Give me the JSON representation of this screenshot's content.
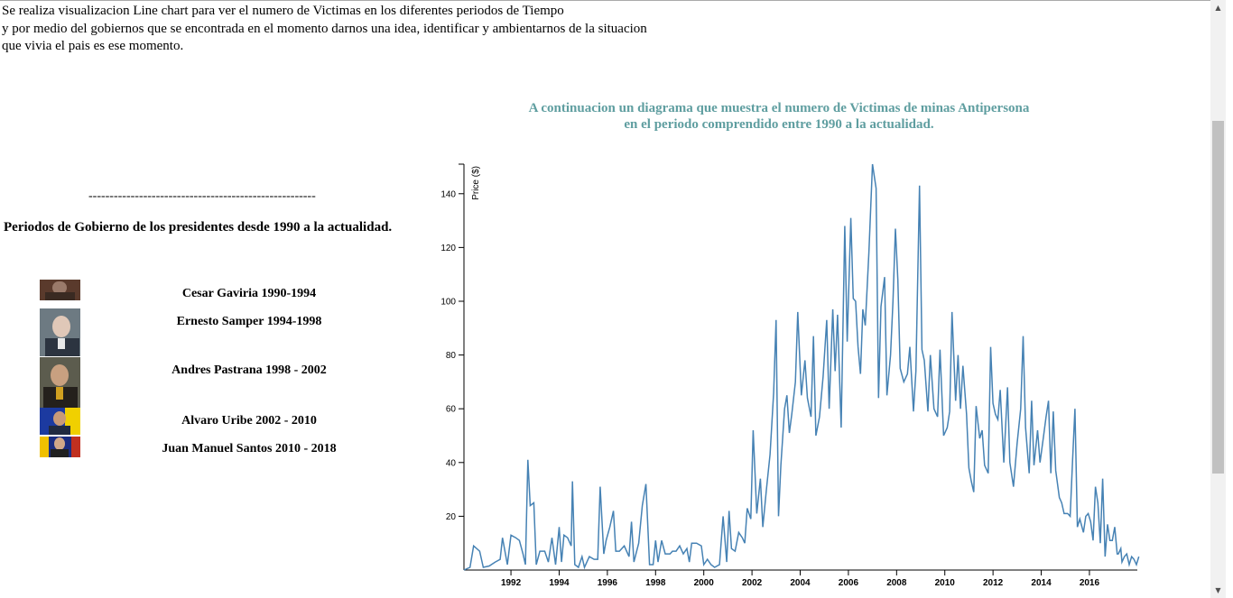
{
  "intro": {
    "lines": [
      "Se realiza visualizacion Line chart para ver el numero de Victimas en los diferentes periodos de Tiempo",
      "y por medio del gobiernos que se encontrada en el momento darnos una idea, identificar y ambientarnos de la situacion",
      "que vivia el pais es ese momento."
    ]
  },
  "left": {
    "separator": "------------------------------------------------------",
    "heading": "Periodos de Gobierno de los presidentes desde 1990 a la actualidad.",
    "presidents": [
      {
        "name": "Cesar Gaviria 1990-1994",
        "photo_colors": [
          "#5a3a2c",
          "#9a7a6a",
          "#3a2a22"
        ]
      },
      {
        "name": "Ernesto Samper 1994-1998",
        "photo_colors": [
          "#6d7a82",
          "#e0c8b8",
          "#2c3440"
        ]
      },
      {
        "name": "Andres Pastrana 1998 - 2002",
        "photo_colors": [
          "#5c5c4e",
          "#c8a080",
          "#24201c"
        ]
      },
      {
        "name": "Alvaro Uribe 2002 - 2010",
        "photo_colors": [
          "#1c3aa0",
          "#f0d000",
          "#202a40"
        ]
      },
      {
        "name": "Juan Manuel Santos 2010 - 2018",
        "photo_colors": [
          "#1a2d80",
          "#f0c000",
          "#c03020"
        ]
      }
    ]
  },
  "chart_title": {
    "line1": "A continuacion un diagrama que muestra el numero de Victimas de minas Antipersona",
    "line2": "en el periodo comprendido entre 1990 a la actualidad."
  },
  "colors": {
    "title": "#5f9ea0",
    "line": "#4682b4"
  },
  "chart_data": {
    "type": "line",
    "ylabel": "Price ($)",
    "xlabel": "",
    "xlim": [
      1990.05,
      2017.5
    ],
    "ylim": [
      0,
      151
    ],
    "x_ticks": [
      1992,
      1994,
      1996,
      1998,
      2000,
      2002,
      2004,
      2006,
      2008,
      2010,
      2012,
      2014,
      2016
    ],
    "y_ticks": [
      20,
      40,
      60,
      80,
      100,
      120,
      140
    ],
    "grid": false,
    "series": [
      {
        "values": [
          [
            1990.05,
            0
          ],
          [
            1990.3,
            1
          ],
          [
            1990.45,
            9
          ],
          [
            1990.7,
            7
          ],
          [
            1990.85,
            1
          ],
          [
            1991.1,
            1.5
          ],
          [
            1991.35,
            3
          ],
          [
            1991.55,
            4
          ],
          [
            1991.65,
            12
          ],
          [
            1991.85,
            2
          ],
          [
            1992.0,
            13
          ],
          [
            1992.2,
            12
          ],
          [
            1992.35,
            11
          ],
          [
            1992.5,
            6
          ],
          [
            1992.6,
            2
          ],
          [
            1992.7,
            41
          ],
          [
            1992.8,
            24
          ],
          [
            1992.95,
            25
          ],
          [
            1993.05,
            2
          ],
          [
            1993.2,
            7
          ],
          [
            1993.4,
            7
          ],
          [
            1993.55,
            3
          ],
          [
            1993.7,
            12
          ],
          [
            1993.85,
            2
          ],
          [
            1994.0,
            16
          ],
          [
            1994.1,
            3
          ],
          [
            1994.2,
            13
          ],
          [
            1994.35,
            12
          ],
          [
            1994.5,
            9
          ],
          [
            1994.55,
            33
          ],
          [
            1994.65,
            2
          ],
          [
            1994.8,
            1
          ],
          [
            1994.95,
            5
          ],
          [
            1995.05,
            1
          ],
          [
            1995.25,
            5
          ],
          [
            1995.45,
            4
          ],
          [
            1995.6,
            4
          ],
          [
            1995.7,
            31
          ],
          [
            1995.85,
            6
          ],
          [
            1995.95,
            11
          ],
          [
            1996.1,
            16
          ],
          [
            1996.25,
            22
          ],
          [
            1996.35,
            7
          ],
          [
            1996.5,
            7
          ],
          [
            1996.7,
            9
          ],
          [
            1996.8,
            7
          ],
          [
            1996.9,
            5
          ],
          [
            1997.0,
            18
          ],
          [
            1997.1,
            3
          ],
          [
            1997.3,
            10
          ],
          [
            1997.45,
            24
          ],
          [
            1997.6,
            32
          ],
          [
            1997.75,
            2
          ],
          [
            1997.9,
            2
          ],
          [
            1998.0,
            11
          ],
          [
            1998.1,
            3
          ],
          [
            1998.25,
            11
          ],
          [
            1998.4,
            6
          ],
          [
            1998.6,
            6
          ],
          [
            1998.7,
            7
          ],
          [
            1998.85,
            7
          ],
          [
            1999.0,
            9
          ],
          [
            1999.15,
            6
          ],
          [
            1999.3,
            8
          ],
          [
            1999.4,
            3
          ],
          [
            1999.5,
            10
          ],
          [
            1999.7,
            10
          ],
          [
            1999.9,
            9
          ],
          [
            2000.0,
            2
          ],
          [
            2000.15,
            4
          ],
          [
            2000.3,
            2
          ],
          [
            2000.45,
            1
          ],
          [
            2000.65,
            2
          ],
          [
            2000.8,
            20
          ],
          [
            2000.95,
            3
          ],
          [
            2001.05,
            22
          ],
          [
            2001.15,
            8
          ],
          [
            2001.3,
            7
          ],
          [
            2001.45,
            14
          ],
          [
            2001.6,
            12
          ],
          [
            2001.7,
            10
          ],
          [
            2001.8,
            23
          ],
          [
            2001.95,
            19
          ],
          [
            2002.05,
            52
          ],
          [
            2002.2,
            21
          ],
          [
            2002.35,
            34
          ],
          [
            2002.45,
            16
          ],
          [
            2002.6,
            30
          ],
          [
            2002.75,
            43
          ],
          [
            2002.9,
            66
          ],
          [
            2003.0,
            93
          ],
          [
            2003.1,
            20
          ],
          [
            2003.2,
            39
          ],
          [
            2003.35,
            60
          ],
          [
            2003.45,
            65
          ],
          [
            2003.55,
            51
          ],
          [
            2003.65,
            58
          ],
          [
            2003.8,
            70
          ],
          [
            2003.9,
            96
          ],
          [
            2004.05,
            65
          ],
          [
            2004.2,
            78
          ],
          [
            2004.3,
            64
          ],
          [
            2004.45,
            57
          ],
          [
            2004.55,
            87
          ],
          [
            2004.65,
            50
          ],
          [
            2004.8,
            57
          ],
          [
            2004.95,
            72
          ],
          [
            2005.1,
            93
          ],
          [
            2005.2,
            60
          ],
          [
            2005.35,
            97
          ],
          [
            2005.45,
            74
          ],
          [
            2005.55,
            95
          ],
          [
            2005.7,
            53
          ],
          [
            2005.85,
            128
          ],
          [
            2005.95,
            85
          ],
          [
            2006.1,
            131
          ],
          [
            2006.2,
            101
          ],
          [
            2006.3,
            100
          ],
          [
            2006.4,
            83
          ],
          [
            2006.5,
            73
          ],
          [
            2006.6,
            97
          ],
          [
            2006.7,
            91
          ],
          [
            2006.85,
            118
          ],
          [
            2007.0,
            151
          ],
          [
            2007.15,
            142
          ],
          [
            2007.25,
            64
          ],
          [
            2007.35,
            98
          ],
          [
            2007.5,
            109
          ],
          [
            2007.6,
            65
          ],
          [
            2007.75,
            80
          ],
          [
            2007.85,
            100
          ],
          [
            2007.95,
            127
          ],
          [
            2008.05,
            108
          ],
          [
            2008.15,
            75
          ],
          [
            2008.3,
            70
          ],
          [
            2008.45,
            73
          ],
          [
            2008.55,
            83
          ],
          [
            2008.7,
            59
          ],
          [
            2008.8,
            74
          ],
          [
            2008.95,
            143
          ],
          [
            2009.05,
            82
          ],
          [
            2009.15,
            78
          ],
          [
            2009.3,
            59
          ],
          [
            2009.4,
            80
          ],
          [
            2009.55,
            60
          ],
          [
            2009.7,
            57
          ],
          [
            2009.8,
            82
          ],
          [
            2009.95,
            50
          ],
          [
            2010.1,
            53
          ],
          [
            2010.2,
            59
          ],
          [
            2010.3,
            96
          ],
          [
            2010.45,
            63
          ],
          [
            2010.55,
            80
          ],
          [
            2010.65,
            60
          ],
          [
            2010.75,
            76
          ],
          [
            2010.9,
            58
          ],
          [
            2011.0,
            38
          ],
          [
            2011.1,
            33
          ],
          [
            2011.2,
            29
          ],
          [
            2011.3,
            61
          ],
          [
            2011.45,
            49
          ],
          [
            2011.55,
            52
          ],
          [
            2011.65,
            39
          ],
          [
            2011.8,
            36
          ],
          [
            2011.9,
            83
          ],
          [
            2012.0,
            62
          ],
          [
            2012.1,
            58
          ],
          [
            2012.2,
            56
          ],
          [
            2012.3,
            67
          ],
          [
            2012.45,
            40
          ],
          [
            2012.6,
            68
          ],
          [
            2012.7,
            40
          ],
          [
            2012.85,
            31
          ],
          [
            2013.0,
            47
          ],
          [
            2013.15,
            60
          ],
          [
            2013.25,
            87
          ],
          [
            2013.35,
            53
          ],
          [
            2013.5,
            36
          ],
          [
            2013.6,
            63
          ],
          [
            2013.7,
            39
          ],
          [
            2013.85,
            52
          ],
          [
            2013.95,
            40
          ],
          [
            2014.1,
            50
          ],
          [
            2014.2,
            57
          ],
          [
            2014.3,
            63
          ],
          [
            2014.4,
            36
          ],
          [
            2014.5,
            59
          ],
          [
            2014.6,
            37
          ],
          [
            2014.75,
            27
          ],
          [
            2014.85,
            25
          ],
          [
            2014.95,
            21
          ],
          [
            2015.1,
            21
          ],
          [
            2015.2,
            20
          ],
          [
            2015.3,
            41
          ],
          [
            2015.4,
            60
          ],
          [
            2015.5,
            16
          ],
          [
            2015.6,
            19
          ],
          [
            2015.75,
            14
          ],
          [
            2015.85,
            20
          ],
          [
            2015.95,
            21
          ],
          [
            2016.05,
            18
          ],
          [
            2016.15,
            11
          ],
          [
            2016.25,
            31
          ],
          [
            2016.35,
            25
          ],
          [
            2016.45,
            10
          ],
          [
            2016.55,
            34
          ],
          [
            2016.65,
            5
          ],
          [
            2016.75,
            17
          ],
          [
            2016.85,
            11
          ],
          [
            2016.95,
            11
          ],
          [
            2017.05,
            16
          ],
          [
            2017.15,
            6
          ],
          [
            2017.2,
            6
          ],
          [
            2017.3,
            8
          ],
          [
            2017.35,
            3
          ],
          [
            2017.45,
            5
          ],
          [
            2017.55,
            6
          ],
          [
            2017.65,
            2
          ],
          [
            2017.75,
            5
          ],
          [
            2017.85,
            4
          ],
          [
            2017.95,
            2
          ],
          [
            2018.05,
            5
          ]
        ]
      }
    ]
  }
}
